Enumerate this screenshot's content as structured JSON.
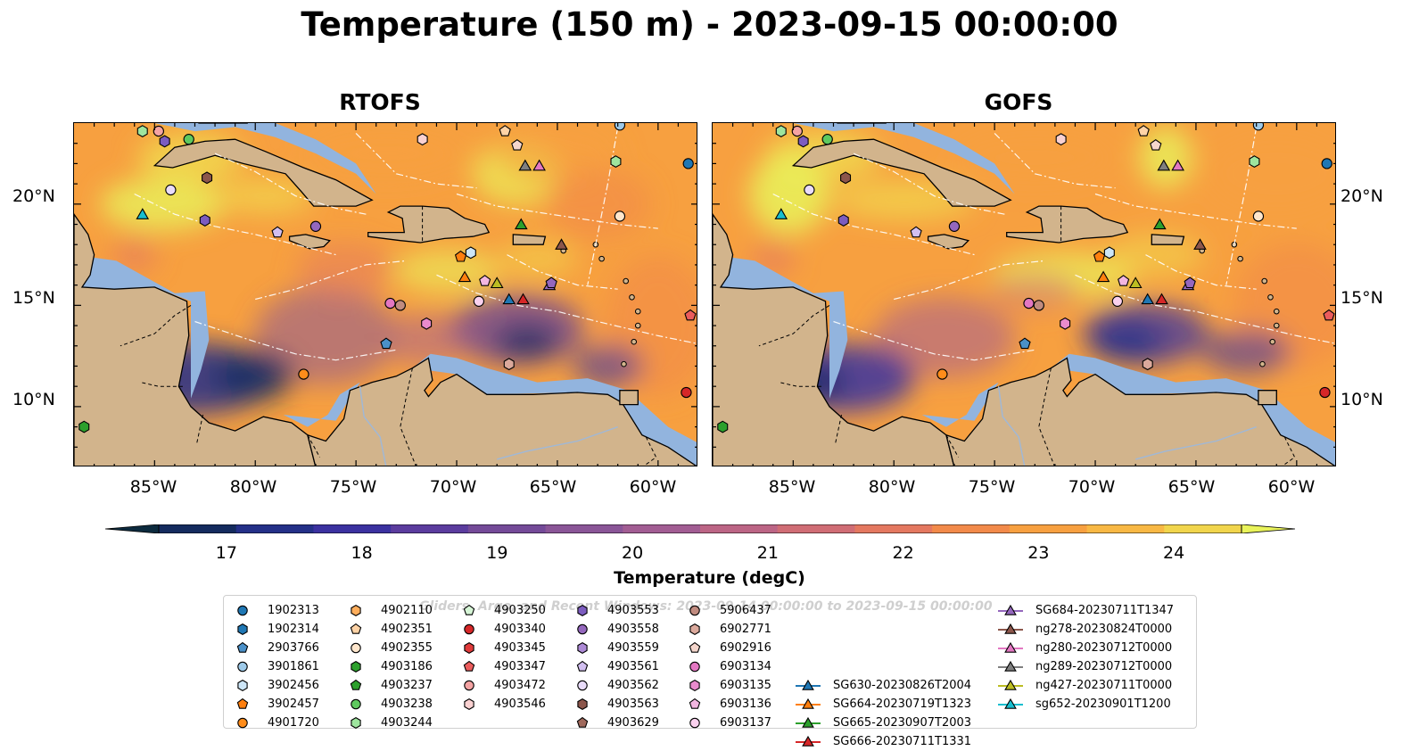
{
  "figure": {
    "title": "Temperature (150 m) - 2023-09-15 00:00:00"
  },
  "panels": [
    {
      "title": "RTOFS"
    },
    {
      "title": "GOFS"
    }
  ],
  "axes": {
    "lon_range": [
      -89,
      -58
    ],
    "lat_range": [
      7,
      24
    ],
    "x_ticks": [
      "85°W",
      "80°W",
      "75°W",
      "70°W",
      "65°W",
      "60°W"
    ],
    "y_ticks": [
      "20°N",
      "15°N",
      "10°N"
    ]
  },
  "colorbar": {
    "label": "Temperature (degC)",
    "range": [
      16.5,
      24.5
    ],
    "ticks": [
      "17",
      "18",
      "19",
      "20",
      "21",
      "22",
      "23",
      "24"
    ],
    "colors": [
      "#0c2a3e",
      "#142b5e",
      "#243088",
      "#3b31a0",
      "#5b3c9e",
      "#744a98",
      "#8a5597",
      "#a25d93",
      "#bc6585",
      "#d06d75",
      "#e47860",
      "#f28a4a",
      "#f7a040",
      "#f8b844",
      "#f1d54c",
      "#e9f35a"
    ],
    "extend": "both"
  },
  "legend": {
    "watermark": "Gliders, Argo, and Recent Windows: 2023-09-14 00:00:00 to 2023-09-15 00:00:00",
    "items": [
      {
        "label": "1902313",
        "marker": "circle",
        "color": "#1f77b4"
      },
      {
        "label": "1902314",
        "marker": "hexagon",
        "color": "#1f77b4"
      },
      {
        "label": "2903766",
        "marker": "pentagon",
        "color": "#4a90c8"
      },
      {
        "label": "3901861",
        "marker": "circle",
        "color": "#9ecae9"
      },
      {
        "label": "3902456",
        "marker": "hexagon",
        "color": "#cde6f7"
      },
      {
        "label": "3902457",
        "marker": "pentagon",
        "color": "#ff7f0e"
      },
      {
        "label": "4901720",
        "marker": "circle",
        "color": "#ff8c1a"
      },
      {
        "label": "4902110",
        "marker": "hexagon",
        "color": "#ffae5c"
      },
      {
        "label": "4902351",
        "marker": "pentagon",
        "color": "#ffd3a6"
      },
      {
        "label": "4902355",
        "marker": "circle",
        "color": "#ffe6cc"
      },
      {
        "label": "4903186",
        "marker": "hexagon",
        "color": "#2ca02c"
      },
      {
        "label": "4903237",
        "marker": "pentagon",
        "color": "#2ca02c"
      },
      {
        "label": "4903238",
        "marker": "circle",
        "color": "#5fc95f"
      },
      {
        "label": "4903244",
        "marker": "hexagon",
        "color": "#9ee59e"
      },
      {
        "label": "4903250",
        "marker": "pentagon",
        "color": "#d6f5d6"
      },
      {
        "label": "4903340",
        "marker": "circle",
        "color": "#d62728"
      },
      {
        "label": "4903345",
        "marker": "hexagon",
        "color": "#e03a3a"
      },
      {
        "label": "4903347",
        "marker": "pentagon",
        "color": "#eb5c5c"
      },
      {
        "label": "4903472",
        "marker": "circle",
        "color": "#f4a3a3"
      },
      {
        "label": "4903546",
        "marker": "hexagon",
        "color": "#fad1d1"
      },
      {
        "label": "4903553",
        "marker": "hexagon",
        "color": "#7c5cbf"
      },
      {
        "label": "4903558",
        "marker": "circle",
        "color": "#9467bd"
      },
      {
        "label": "4903559",
        "marker": "hexagon",
        "color": "#ad8ad6"
      },
      {
        "label": "4903561",
        "marker": "pentagon",
        "color": "#d2bff0"
      },
      {
        "label": "4903562",
        "marker": "circle",
        "color": "#e9dcfa"
      },
      {
        "label": "4903563",
        "marker": "hexagon",
        "color": "#8c564b"
      },
      {
        "label": "4903629",
        "marker": "pentagon",
        "color": "#a0695c"
      },
      {
        "label": "5906437",
        "marker": "circle",
        "color": "#c08b7f"
      },
      {
        "label": "6902771",
        "marker": "hexagon",
        "color": "#dba99c"
      },
      {
        "label": "6902916",
        "marker": "pentagon",
        "color": "#f5d6cc"
      },
      {
        "label": "6903134",
        "marker": "circle",
        "color": "#e377c2"
      },
      {
        "label": "6903135",
        "marker": "hexagon",
        "color": "#e98bcd"
      },
      {
        "label": "6903136",
        "marker": "pentagon",
        "color": "#f2b6e0"
      },
      {
        "label": "6903137",
        "marker": "circle",
        "color": "#fad1ee"
      },
      {
        "label": "SG630-20230826T2004",
        "marker": "triangle-line",
        "color": "#1f77b4"
      },
      {
        "label": "SG664-20230719T1323",
        "marker": "triangle-line",
        "color": "#ff7f0e"
      },
      {
        "label": "SG665-20230907T2003",
        "marker": "triangle-line",
        "color": "#2ca02c"
      },
      {
        "label": "SG666-20230711T1331",
        "marker": "triangle-line",
        "color": "#d62728"
      },
      {
        "label": "SG684-20230711T1347",
        "marker": "triangle-line",
        "color": "#9467bd"
      },
      {
        "label": "ng278-20230824T0000",
        "marker": "triangle-line",
        "color": "#8c564b"
      },
      {
        "label": "ng280-20230712T0000",
        "marker": "triangle-line",
        "color": "#e377c2"
      },
      {
        "label": "ng289-20230712T0000",
        "marker": "triangle-line",
        "color": "#7f7f7f"
      },
      {
        "label": "ng427-20230711T0000",
        "marker": "triangle-line",
        "color": "#bcbd22"
      },
      {
        "label": "sg652-20230901T1200",
        "marker": "triangle-line",
        "color": "#17becf"
      }
    ]
  },
  "platforms": [
    {
      "lon": -85.6,
      "lat": 19.5,
      "marker": "triangle",
      "color": "#17becf"
    },
    {
      "lon": -66.8,
      "lat": 19.0,
      "marker": "triangle",
      "color": "#2ca02c"
    },
    {
      "lon": -66.6,
      "lat": 21.9,
      "marker": "triangle",
      "color": "#7f7f7f"
    },
    {
      "lon": -65.9,
      "lat": 21.9,
      "marker": "triangle",
      "color": "#e377c2"
    },
    {
      "lon": -64.8,
      "lat": 18.0,
      "marker": "triangle",
      "color": "#8c564b"
    },
    {
      "lon": -69.6,
      "lat": 16.4,
      "marker": "triangle",
      "color": "#ff7f0e"
    },
    {
      "lon": -68.0,
      "lat": 16.1,
      "marker": "triangle",
      "color": "#bcbd22"
    },
    {
      "lon": -67.4,
      "lat": 15.3,
      "marker": "triangle",
      "color": "#1f77b4"
    },
    {
      "lon": -66.7,
      "lat": 15.3,
      "marker": "triangle",
      "color": "#d62728"
    },
    {
      "lon": -65.4,
      "lat": 16.0,
      "marker": "triangle",
      "color": "#9467bd"
    },
    {
      "lon": -58.5,
      "lat": 22.0,
      "marker": "circle",
      "color": "#1f77b4"
    },
    {
      "lon": -61.9,
      "lat": 23.9,
      "marker": "circle",
      "color": "#9ecae9"
    },
    {
      "lon": -83.3,
      "lat": 23.2,
      "marker": "circle",
      "color": "#5fc95f"
    },
    {
      "lon": -84.8,
      "lat": 23.6,
      "marker": "circle",
      "color": "#f4a3a3"
    },
    {
      "lon": -84.2,
      "lat": 20.7,
      "marker": "circle",
      "color": "#e9dcfa"
    },
    {
      "lon": -77.0,
      "lat": 18.9,
      "marker": "circle",
      "color": "#9467bd"
    },
    {
      "lon": -61.9,
      "lat": 19.4,
      "marker": "circle",
      "color": "#ffe6cc"
    },
    {
      "lon": -73.3,
      "lat": 15.1,
      "marker": "circle",
      "color": "#e377c2"
    },
    {
      "lon": -72.8,
      "lat": 15.0,
      "marker": "circle",
      "color": "#c08b7f"
    },
    {
      "lon": -68.9,
      "lat": 15.2,
      "marker": "circle",
      "color": "#fad1ee"
    },
    {
      "lon": -77.6,
      "lat": 11.6,
      "marker": "circle",
      "color": "#ff8c1a"
    },
    {
      "lon": -58.6,
      "lat": 10.7,
      "marker": "circle",
      "color": "#d62728"
    },
    {
      "lon": -85.6,
      "lat": 23.6,
      "marker": "hexagon",
      "color": "#9ee59e"
    },
    {
      "lon": -84.5,
      "lat": 23.1,
      "marker": "hexagon",
      "color": "#7c5cbf"
    },
    {
      "lon": -82.4,
      "lat": 21.3,
      "marker": "hexagon",
      "color": "#8c564b"
    },
    {
      "lon": -82.5,
      "lat": 19.2,
      "marker": "hexagon",
      "color": "#7c5cbf"
    },
    {
      "lon": -71.7,
      "lat": 23.2,
      "marker": "hexagon",
      "color": "#fad1d1"
    },
    {
      "lon": -62.1,
      "lat": 22.1,
      "marker": "hexagon",
      "color": "#9ee59e"
    },
    {
      "lon": -69.3,
      "lat": 17.6,
      "marker": "hexagon",
      "color": "#cde6f7"
    },
    {
      "lon": -67.4,
      "lat": 12.1,
      "marker": "hexagon",
      "color": "#dba99c"
    },
    {
      "lon": -71.5,
      "lat": 14.1,
      "marker": "hexagon",
      "color": "#e98bcd"
    },
    {
      "lon": -88.5,
      "lat": 9.0,
      "marker": "hexagon",
      "color": "#2ca02c"
    },
    {
      "lon": -67.6,
      "lat": 23.6,
      "marker": "pentagon",
      "color": "#ffd3a6"
    },
    {
      "lon": -67.0,
      "lat": 22.9,
      "marker": "pentagon",
      "color": "#f5d6cc"
    },
    {
      "lon": -78.9,
      "lat": 18.6,
      "marker": "pentagon",
      "color": "#d2bff0"
    },
    {
      "lon": -69.8,
      "lat": 17.4,
      "marker": "pentagon",
      "color": "#ff7f0e"
    },
    {
      "lon": -68.6,
      "lat": 16.2,
      "marker": "pentagon",
      "color": "#f2b6e0"
    },
    {
      "lon": -73.5,
      "lat": 13.1,
      "marker": "pentagon",
      "color": "#4a90c8"
    },
    {
      "lon": -58.4,
      "lat": 14.5,
      "marker": "pentagon",
      "color": "#eb5c5c"
    },
    {
      "lon": -65.3,
      "lat": 16.1,
      "marker": "pentagon",
      "color": "#9467bd"
    }
  ]
}
